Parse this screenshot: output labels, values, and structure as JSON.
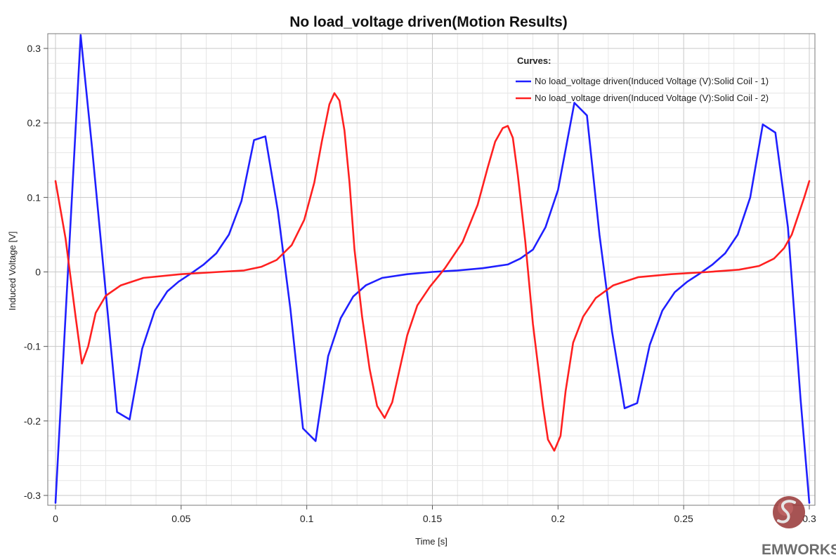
{
  "chart_data": {
    "type": "line",
    "title": "No load_voltage driven(Motion Results)",
    "xlabel": "Time [s]",
    "ylabel": "Induced Voltage [V]",
    "xlim": [
      0,
      0.3
    ],
    "ylim": [
      -0.32,
      0.32
    ],
    "xticks": [
      0,
      0.05,
      0.1,
      0.15,
      0.2,
      0.25,
      0.3
    ],
    "xtick_labels": [
      "0",
      "0.05",
      "0.1",
      "0.15",
      "0.2",
      "0.25",
      "0.3"
    ],
    "yticks": [
      -0.3,
      -0.2,
      -0.1,
      0,
      0.1,
      0.2,
      0.3
    ],
    "ytick_labels": [
      "-0.3",
      "-0.2",
      "-0.1",
      "0",
      "0.1",
      "0.2",
      "0.3"
    ],
    "grid": true,
    "legend": {
      "title": "Curves:",
      "position": "top-right"
    },
    "series": [
      {
        "name": "No load_voltage driven(Induced Voltage (V):Solid Coil - 1)",
        "color": "#1f1fff",
        "x": [
          0,
          0.01,
          0.0145,
          0.0245,
          0.0295,
          0.0345,
          0.0395,
          0.0445,
          0.049,
          0.054,
          0.059,
          0.064,
          0.069,
          0.074,
          0.079,
          0.0835,
          0.0885,
          0.0935,
          0.0985,
          0.1035,
          0.1085,
          0.1135,
          0.1185,
          0.1235,
          0.13,
          0.14,
          0.15,
          0.16,
          0.17,
          0.18,
          0.185,
          0.19,
          0.195,
          0.2,
          0.2065,
          0.2115,
          0.2165,
          0.2215,
          0.2265,
          0.2315,
          0.2365,
          0.2415,
          0.2465,
          0.2515,
          0.2565,
          0.2615,
          0.2665,
          0.2715,
          0.2765,
          0.2815,
          0.2865,
          0.2915,
          0.2965,
          0.3
        ],
        "y": [
          -0.31,
          0.318,
          0.168,
          -0.188,
          -0.198,
          -0.103,
          -0.052,
          -0.026,
          -0.013,
          -0.002,
          0.01,
          0.025,
          0.05,
          0.095,
          0.177,
          0.182,
          0.082,
          -0.05,
          -0.21,
          -0.227,
          -0.113,
          -0.062,
          -0.033,
          -0.018,
          -0.008,
          -0.003,
          0.0,
          0.002,
          0.005,
          0.01,
          0.018,
          0.03,
          0.06,
          0.11,
          0.227,
          0.21,
          0.05,
          -0.08,
          -0.183,
          -0.176,
          -0.098,
          -0.052,
          -0.027,
          -0.013,
          -0.002,
          0.01,
          0.025,
          0.05,
          0.1,
          0.198,
          0.187,
          0.06,
          -0.17,
          -0.31
        ]
      },
      {
        "name": "No load_voltage driven(Induced Voltage (V):Solid Coil - 2)",
        "color": "#ff2020",
        "x": [
          0,
          0.004,
          0.008,
          0.0105,
          0.013,
          0.016,
          0.02,
          0.026,
          0.035,
          0.05,
          0.065,
          0.075,
          0.082,
          0.088,
          0.094,
          0.099,
          0.103,
          0.106,
          0.109,
          0.111,
          0.113,
          0.115,
          0.117,
          0.119,
          0.122,
          0.125,
          0.128,
          0.131,
          0.134,
          0.137,
          0.14,
          0.144,
          0.149,
          0.155,
          0.162,
          0.168,
          0.172,
          0.175,
          0.178,
          0.18,
          0.182,
          0.184,
          0.187,
          0.19,
          0.194,
          0.196,
          0.1985,
          0.201,
          0.203,
          0.206,
          0.21,
          0.215,
          0.222,
          0.232,
          0.245,
          0.26,
          0.272,
          0.28,
          0.286,
          0.29,
          0.293,
          0.296,
          0.298,
          0.3
        ],
        "y": [
          0.122,
          0.045,
          -0.06,
          -0.123,
          -0.1,
          -0.055,
          -0.032,
          -0.018,
          -0.008,
          -0.003,
          0.0,
          0.002,
          0.007,
          0.016,
          0.036,
          0.07,
          0.12,
          0.175,
          0.225,
          0.24,
          0.23,
          0.19,
          0.12,
          0.03,
          -0.06,
          -0.13,
          -0.18,
          -0.196,
          -0.175,
          -0.13,
          -0.085,
          -0.045,
          -0.02,
          0.005,
          0.04,
          0.09,
          0.14,
          0.175,
          0.193,
          0.196,
          0.18,
          0.13,
          0.04,
          -0.07,
          -0.18,
          -0.225,
          -0.24,
          -0.22,
          -0.16,
          -0.095,
          -0.06,
          -0.035,
          -0.018,
          -0.007,
          -0.003,
          0.0,
          0.003,
          0.008,
          0.018,
          0.032,
          0.05,
          0.08,
          0.1,
          0.122
        ]
      }
    ]
  },
  "logo": {
    "text": "EMWORKS"
  }
}
